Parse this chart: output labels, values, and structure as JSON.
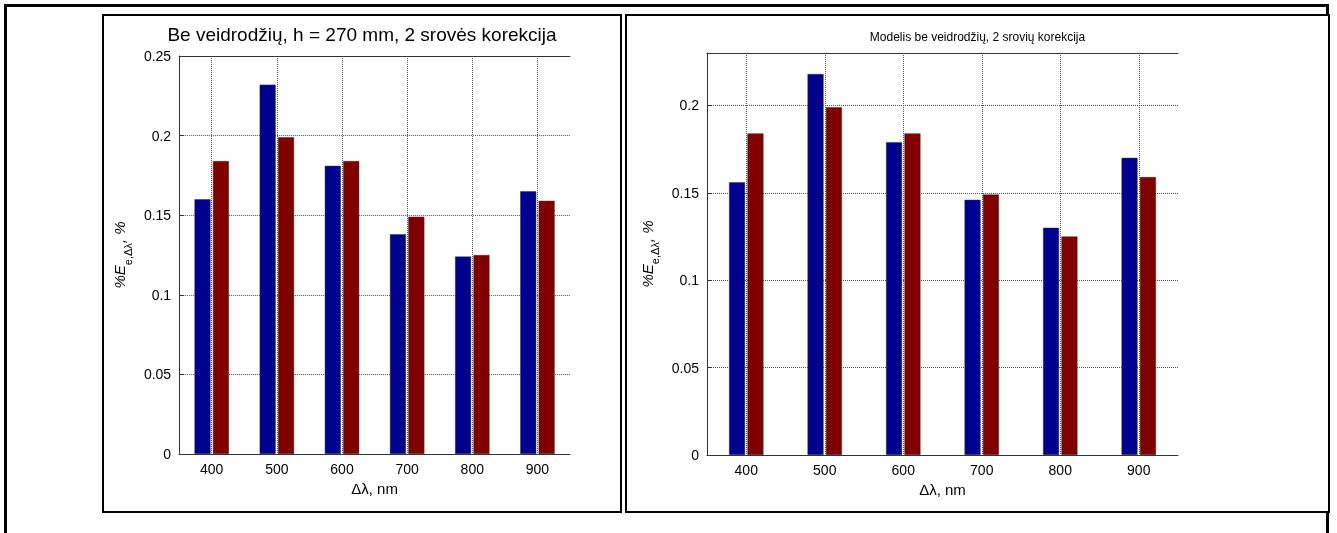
{
  "chart_data": [
    {
      "type": "bar",
      "title": "Be veidrodžių, h = 270 mm, 2 srovės korekcija",
      "xlabel": "Δλ, nm",
      "ylabel": "%E$_{e,Δλ}$, %",
      "categories": [
        "400",
        "500",
        "600",
        "700",
        "800",
        "900"
      ],
      "series": [
        {
          "color": "#00008f",
          "values": [
            0.16,
            0.232,
            0.181,
            0.138,
            0.124,
            0.165
          ]
        },
        {
          "color": "#800000",
          "values": [
            0.184,
            0.199,
            0.184,
            0.149,
            0.125,
            0.159
          ]
        }
      ],
      "ylim": [
        0,
        0.25
      ],
      "yticks": [
        0,
        0.05,
        0.1,
        0.15,
        0.2,
        0.25
      ],
      "grid": true
    },
    {
      "type": "bar",
      "title": "Modelis be veidrodžių, 2 srovių korekcija",
      "xlabel": "Δλ, nm",
      "ylabel": "%E$_{e,Δλ}$, %",
      "categories": [
        "400",
        "500",
        "600",
        "700",
        "800",
        "900"
      ],
      "series": [
        {
          "color": "#00008f",
          "values": [
            0.156,
            0.218,
            0.179,
            0.146,
            0.13,
            0.17
          ]
        },
        {
          "color": "#800000",
          "values": [
            0.184,
            0.199,
            0.184,
            0.149,
            0.125,
            0.159
          ]
        }
      ],
      "ylim": [
        0,
        0.23
      ],
      "yticks": [
        0,
        0.05,
        0.1,
        0.15,
        0.2
      ],
      "grid": true
    }
  ]
}
